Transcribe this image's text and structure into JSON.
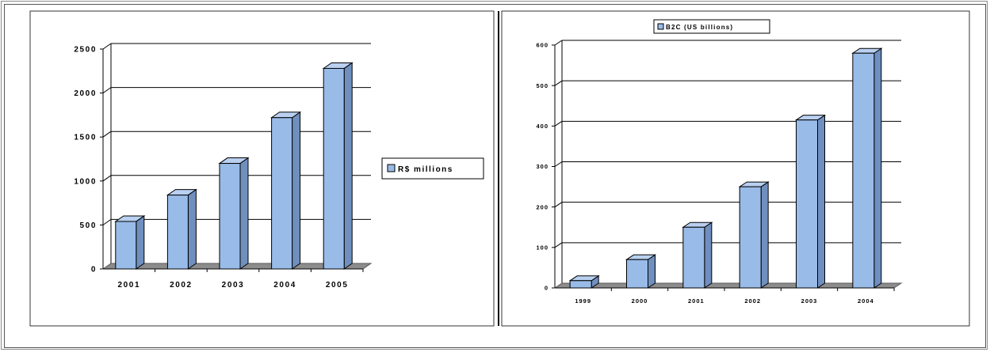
{
  "chart_data": [
    {
      "type": "bar",
      "categories": [
        "2001",
        "2002",
        "2003",
        "2004",
        "2005"
      ],
      "series": [
        {
          "name": "R$ millions",
          "values": [
            540,
            840,
            1200,
            1720,
            2280
          ]
        }
      ],
      "yticks": [
        "0",
        "500",
        "1000",
        "1500",
        "2000",
        "2500"
      ],
      "ylim": [
        0,
        2500
      ],
      "legend": "right",
      "grid": true,
      "bar_color": "#99bbe8"
    },
    {
      "type": "bar",
      "categories": [
        "1999",
        "2000",
        "2001",
        "2002",
        "2003",
        "2004"
      ],
      "series": [
        {
          "name": "B2C (US billions)",
          "values": [
            18,
            70,
            150,
            250,
            415,
            580
          ]
        }
      ],
      "yticks": [
        "0",
        "100",
        "200",
        "300",
        "400",
        "500",
        "600"
      ],
      "ylim": [
        0,
        600
      ],
      "legend": "top",
      "grid": true,
      "bar_color": "#99bbe8"
    }
  ]
}
